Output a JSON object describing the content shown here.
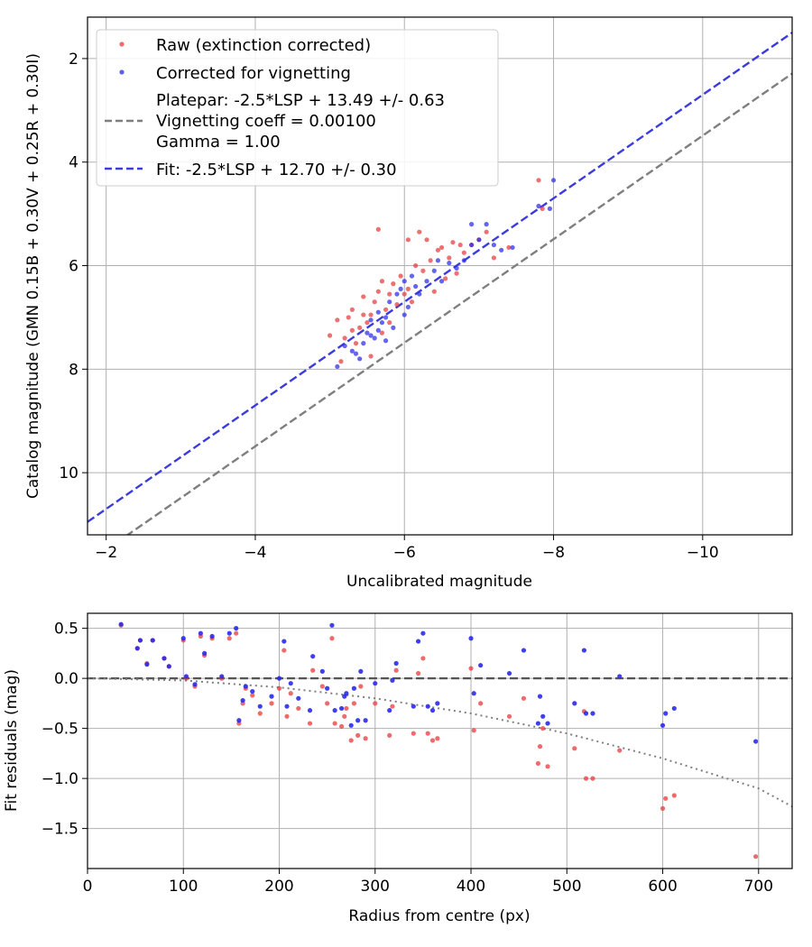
{
  "chart_data": [
    {
      "type": "scatter",
      "name": "calibration",
      "xlabel": "Uncalibrated magnitude",
      "ylabel": "Catalog magnitude (GMN 0.15B + 0.30V + 0.25R + 0.30I)",
      "xlim": [
        -1.75,
        -11.2
      ],
      "ylim": [
        11.2,
        1.2
      ],
      "xticks": [
        -2,
        -4,
        -6,
        -8,
        -10
      ],
      "xtick_labels": [
        "−2",
        "−4",
        "−6",
        "−8",
        "−10"
      ],
      "yticks": [
        2,
        4,
        6,
        8,
        10
      ],
      "ytick_labels": [
        "2",
        "4",
        "6",
        "8",
        "10"
      ],
      "grid": true,
      "legend_position": "upper-left",
      "legend": {
        "raw": "Raw (extinction corrected)",
        "corrected": "Corrected for vignetting",
        "platepar_line1": "Platepar: -2.5*LSP + 13.49 +/- 0.63",
        "platepar_line2": "Vignetting coeff = 0.00100",
        "platepar_line3": "Gamma = 1.00",
        "fit": "Fit: -2.5*LSP + 12.70 +/- 0.30"
      },
      "colors": {
        "raw": "#e8393b",
        "corrected": "#2a2aea",
        "platepar": "#7f7f7f",
        "fit": "#3b3be0"
      },
      "lines": [
        {
          "name": "platepar",
          "slope": 1.0,
          "intercept": 13.49,
          "style": "dashed"
        },
        {
          "name": "fit",
          "slope": 1.0,
          "intercept": 12.7,
          "style": "dashed"
        }
      ],
      "series": [
        {
          "name": "Raw (extinction corrected)",
          "points": [
            [
              -5.0,
              7.35
            ],
            [
              -5.1,
              7.05
            ],
            [
              -5.15,
              7.85
            ],
            [
              -5.2,
              7.4
            ],
            [
              -5.25,
              7.0
            ],
            [
              -5.3,
              6.85
            ],
            [
              -5.35,
              7.5
            ],
            [
              -5.4,
              7.2
            ],
            [
              -5.45,
              6.6
            ],
            [
              -5.5,
              7.1
            ],
            [
              -5.55,
              6.95
            ],
            [
              -5.6,
              6.7
            ],
            [
              -5.65,
              6.5
            ],
            [
              -5.65,
              5.3
            ],
            [
              -5.7,
              7.3
            ],
            [
              -5.75,
              6.85
            ],
            [
              -5.8,
              6.55
            ],
            [
              -5.85,
              6.35
            ],
            [
              -5.9,
              6.75
            ],
            [
              -5.95,
              6.2
            ],
            [
              -6.0,
              6.55
            ],
            [
              -6.05,
              5.5
            ],
            [
              -6.1,
              6.7
            ],
            [
              -6.15,
              6.0
            ],
            [
              -6.2,
              5.35
            ],
            [
              -6.25,
              6.1
            ],
            [
              -6.3,
              5.5
            ],
            [
              -6.35,
              5.9
            ],
            [
              -6.4,
              6.5
            ],
            [
              -6.45,
              5.7
            ],
            [
              -6.5,
              5.65
            ],
            [
              -6.55,
              6.25
            ],
            [
              -6.6,
              5.85
            ],
            [
              -6.65,
              5.55
            ],
            [
              -6.7,
              6.15
            ],
            [
              -6.75,
              5.6
            ],
            [
              -6.8,
              5.75
            ],
            [
              -6.9,
              5.6
            ],
            [
              -7.0,
              5.5
            ],
            [
              -7.1,
              5.35
            ],
            [
              -7.2,
              5.85
            ],
            [
              -7.4,
              5.65
            ],
            [
              -7.8,
              4.35
            ],
            [
              -7.85,
              4.9
            ],
            [
              -5.55,
              7.75
            ],
            [
              -5.8,
              7.1
            ],
            [
              -5.3,
              7.25
            ],
            [
              -6.05,
              6.45
            ],
            [
              -5.45,
              6.95
            ],
            [
              -5.7,
              6.3
            ]
          ]
        },
        {
          "name": "Corrected for vignetting",
          "points": [
            [
              -5.1,
              7.95
            ],
            [
              -5.2,
              7.55
            ],
            [
              -5.3,
              7.65
            ],
            [
              -5.4,
              7.8
            ],
            [
              -5.45,
              7.5
            ],
            [
              -5.5,
              7.3
            ],
            [
              -5.55,
              7.05
            ],
            [
              -5.6,
              7.4
            ],
            [
              -5.65,
              6.9
            ],
            [
              -5.7,
              7.1
            ],
            [
              -5.75,
              7.0
            ],
            [
              -5.8,
              6.7
            ],
            [
              -5.85,
              7.2
            ],
            [
              -5.9,
              6.55
            ],
            [
              -5.95,
              6.45
            ],
            [
              -6.0,
              6.3
            ],
            [
              -6.05,
              6.8
            ],
            [
              -6.1,
              6.2
            ],
            [
              -6.15,
              6.4
            ],
            [
              -6.2,
              6.55
            ],
            [
              -6.3,
              6.3
            ],
            [
              -6.4,
              6.1
            ],
            [
              -6.5,
              6.3
            ],
            [
              -6.6,
              5.95
            ],
            [
              -6.7,
              6.05
            ],
            [
              -6.8,
              5.9
            ],
            [
              -6.9,
              5.6
            ],
            [
              -7.0,
              5.5
            ],
            [
              -7.1,
              5.2
            ],
            [
              -7.2,
              5.6
            ],
            [
              -7.3,
              5.7
            ],
            [
              -7.45,
              5.65
            ],
            [
              -7.8,
              4.85
            ],
            [
              -7.95,
              4.9
            ],
            [
              -8.0,
              4.35
            ],
            [
              -5.35,
              7.7
            ],
            [
              -5.55,
              7.35
            ],
            [
              -5.75,
              7.45
            ],
            [
              -6.0,
              6.95
            ],
            [
              -6.45,
              5.9
            ],
            [
              -6.9,
              5.2
            ],
            [
              -5.65,
              7.25
            ]
          ]
        }
      ]
    },
    {
      "type": "scatter",
      "name": "residuals",
      "xlabel": "Radius from centre (px)",
      "ylabel": "Fit residuals (mag)",
      "xlim": [
        0,
        735
      ],
      "ylim": [
        -1.9,
        0.65
      ],
      "xticks": [
        0,
        100,
        200,
        300,
        400,
        500,
        600,
        700
      ],
      "xtick_labels": [
        "0",
        "100",
        "200",
        "300",
        "400",
        "500",
        "600",
        "700"
      ],
      "yticks": [
        0.5,
        0.0,
        -0.5,
        -1.0,
        -1.5
      ],
      "ytick_labels": [
        "0.5",
        "0.0",
        "−0.5",
        "−1.0",
        "−1.5"
      ],
      "grid": true,
      "zero_line": {
        "y": 0.0,
        "style": "dashed"
      },
      "vignetting_curve": {
        "style": "dotted",
        "x": [
          0,
          100,
          200,
          300,
          400,
          500,
          600,
          700,
          735
        ],
        "y": [
          0.0,
          -0.02,
          -0.09,
          -0.2,
          -0.35,
          -0.55,
          -0.8,
          -1.1,
          -1.28
        ]
      },
      "series": [
        {
          "name": "Raw (extinction corrected)",
          "points": [
            [
              35,
              0.53
            ],
            [
              52,
              0.3
            ],
            [
              55,
              0.38
            ],
            [
              62,
              0.15
            ],
            [
              68,
              0.38
            ],
            [
              80,
              0.2
            ],
            [
              85,
              0.12
            ],
            [
              100,
              0.38
            ],
            [
              103,
              0.0
            ],
            [
              112,
              -0.08
            ],
            [
              118,
              0.42
            ],
            [
              122,
              0.23
            ],
            [
              130,
              0.4
            ],
            [
              140,
              0.0
            ],
            [
              148,
              0.4
            ],
            [
              155,
              0.45
            ],
            [
              158,
              -0.45
            ],
            [
              162,
              -0.25
            ],
            [
              165,
              -0.1
            ],
            [
              172,
              -0.17
            ],
            [
              180,
              -0.35
            ],
            [
              192,
              -0.25
            ],
            [
              200,
              -0.1
            ],
            [
              205,
              0.28
            ],
            [
              208,
              -0.38
            ],
            [
              212,
              -0.15
            ],
            [
              220,
              -0.3
            ],
            [
              232,
              -0.45
            ],
            [
              235,
              0.08
            ],
            [
              245,
              -0.08
            ],
            [
              250,
              -0.25
            ],
            [
              255,
              0.4
            ],
            [
              258,
              -0.45
            ],
            [
              265,
              -0.48
            ],
            [
              268,
              -0.38
            ],
            [
              270,
              -0.3
            ],
            [
              275,
              -0.62
            ],
            [
              278,
              -0.25
            ],
            [
              282,
              -0.57
            ],
            [
              285,
              -0.08
            ],
            [
              290,
              -0.6
            ],
            [
              300,
              -0.25
            ],
            [
              315,
              -0.57
            ],
            [
              318,
              -0.28
            ],
            [
              322,
              0.08
            ],
            [
              340,
              -0.55
            ],
            [
              345,
              0.05
            ],
            [
              350,
              0.2
            ],
            [
              355,
              -0.55
            ],
            [
              360,
              -0.62
            ],
            [
              365,
              -0.6
            ],
            [
              400,
              0.1
            ],
            [
              403,
              -0.52
            ],
            [
              410,
              -0.25
            ],
            [
              440,
              -0.38
            ],
            [
              455,
              -0.2
            ],
            [
              470,
              -0.85
            ],
            [
              472,
              -0.68
            ],
            [
              475,
              -0.5
            ],
            [
              480,
              -0.88
            ],
            [
              508,
              -0.7
            ],
            [
              518,
              -0.33
            ],
            [
              520,
              -1.0
            ],
            [
              527,
              -1.0
            ],
            [
              555,
              -0.72
            ],
            [
              600,
              -1.3
            ],
            [
              603,
              -1.2
            ],
            [
              612,
              -1.17
            ],
            [
              697,
              -1.78
            ]
          ]
        },
        {
          "name": "Corrected for vignetting",
          "points": [
            [
              35,
              0.54
            ],
            [
              52,
              0.3
            ],
            [
              55,
              0.38
            ],
            [
              62,
              0.14
            ],
            [
              68,
              0.38
            ],
            [
              80,
              0.2
            ],
            [
              85,
              0.12
            ],
            [
              100,
              0.4
            ],
            [
              103,
              0.02
            ],
            [
              112,
              -0.06
            ],
            [
              118,
              0.45
            ],
            [
              122,
              0.25
            ],
            [
              130,
              0.42
            ],
            [
              140,
              0.02
            ],
            [
              148,
              0.45
            ],
            [
              155,
              0.5
            ],
            [
              158,
              -0.42
            ],
            [
              162,
              -0.22
            ],
            [
              165,
              -0.08
            ],
            [
              172,
              -0.13
            ],
            [
              180,
              -0.28
            ],
            [
              192,
              -0.18
            ],
            [
              200,
              0.0
            ],
            [
              205,
              0.37
            ],
            [
              208,
              -0.28
            ],
            [
              212,
              -0.05
            ],
            [
              220,
              -0.2
            ],
            [
              232,
              -0.32
            ],
            [
              235,
              0.22
            ],
            [
              245,
              0.07
            ],
            [
              250,
              -0.1
            ],
            [
              255,
              0.53
            ],
            [
              258,
              -0.32
            ],
            [
              265,
              -0.3
            ],
            [
              268,
              -0.18
            ],
            [
              270,
              -0.15
            ],
            [
              275,
              -0.47
            ],
            [
              278,
              -0.1
            ],
            [
              282,
              -0.42
            ],
            [
              285,
              0.07
            ],
            [
              290,
              -0.42
            ],
            [
              300,
              -0.05
            ],
            [
              315,
              -0.32
            ],
            [
              318,
              -0.02
            ],
            [
              322,
              0.15
            ],
            [
              340,
              -0.28
            ],
            [
              345,
              0.37
            ],
            [
              350,
              0.45
            ],
            [
              355,
              -0.28
            ],
            [
              360,
              -0.32
            ],
            [
              365,
              -0.25
            ],
            [
              400,
              0.4
            ],
            [
              403,
              -0.15
            ],
            [
              410,
              0.13
            ],
            [
              440,
              0.05
            ],
            [
              455,
              0.28
            ],
            [
              470,
              -0.45
            ],
            [
              472,
              -0.18
            ],
            [
              475,
              -0.38
            ],
            [
              480,
              -0.45
            ],
            [
              508,
              -0.25
            ],
            [
              518,
              0.28
            ],
            [
              520,
              -0.35
            ],
            [
              527,
              -0.35
            ],
            [
              555,
              0.02
            ],
            [
              600,
              -0.47
            ],
            [
              603,
              -0.35
            ],
            [
              612,
              -0.3
            ],
            [
              697,
              -0.63
            ]
          ]
        }
      ]
    }
  ]
}
